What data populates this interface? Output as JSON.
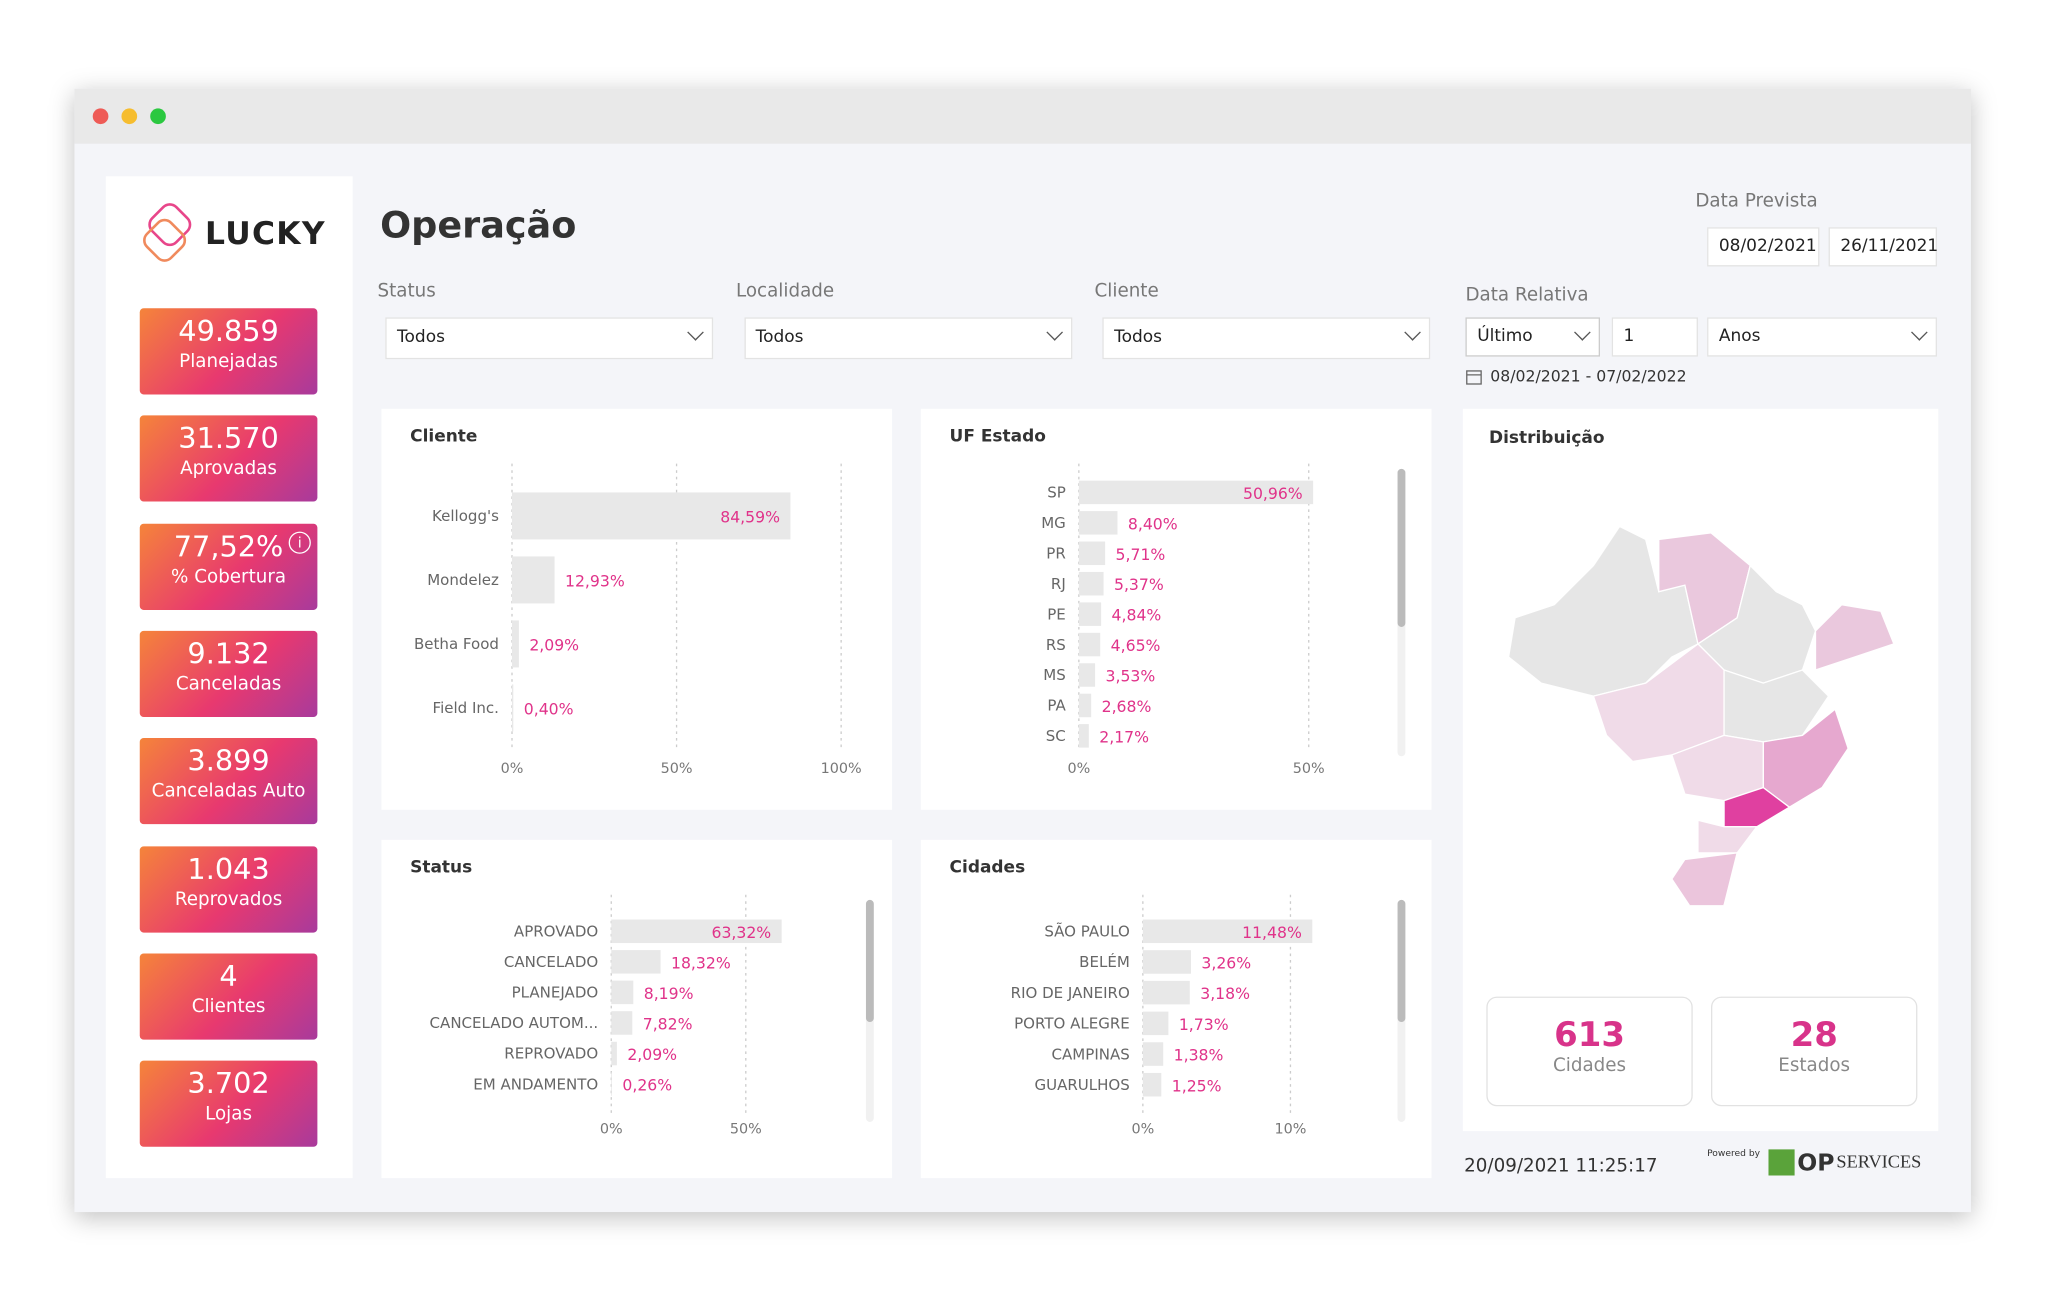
{
  "sidebar": {
    "logo": "LUCKY",
    "kpis": [
      {
        "value": "49.859",
        "label": "Planejadas"
      },
      {
        "value": "31.570",
        "label": "Aprovadas"
      },
      {
        "value": "77,52%",
        "label": "% Cobertura"
      },
      {
        "value": "9.132",
        "label": "Canceladas"
      },
      {
        "value": "3.899",
        "label": "Canceladas Auto"
      },
      {
        "value": "1.043",
        "label": "Reprovados"
      },
      {
        "value": "4",
        "label": "Clientes"
      },
      {
        "value": "3.702",
        "label": "Lojas"
      }
    ]
  },
  "header": {
    "title": "Operação"
  },
  "filters": [
    {
      "label": "Status",
      "value": "Todos"
    },
    {
      "label": "Localidade",
      "value": "Todos"
    },
    {
      "label": "Cliente",
      "value": "Todos"
    }
  ],
  "data_prevista": {
    "label": "Data Prevista",
    "start": "08/02/2021",
    "end": "26/11/2021"
  },
  "data_relativa": {
    "label": "Data Relativa",
    "mode": "Último",
    "count": "1",
    "unit": "Anos",
    "range": "08/02/2021 - 07/02/2022"
  },
  "chart_data": [
    {
      "type": "bar",
      "orientation": "horizontal",
      "title": "Cliente",
      "categories": [
        "Kellogg's",
        "Mondelez",
        "Betha Food",
        "Field Inc."
      ],
      "values": [
        84.59,
        12.93,
        2.09,
        0.4
      ],
      "value_labels": [
        "84,59%",
        "12,93%",
        "2,09%",
        "0,40%"
      ],
      "xlim": [
        0,
        100
      ],
      "xticks": [
        {
          "value": 0,
          "label": "0%"
        },
        {
          "value": 50,
          "label": "50%"
        },
        {
          "value": 100,
          "label": "100%"
        }
      ],
      "color": "#e8e8e8",
      "label_color": "#e0338a",
      "grid": true
    },
    {
      "type": "bar",
      "orientation": "horizontal",
      "title": "UF Estado",
      "categories": [
        "SP",
        "MG",
        "PR",
        "RJ",
        "PE",
        "RS",
        "MS",
        "PA",
        "SC"
      ],
      "values": [
        50.96,
        8.4,
        5.71,
        5.37,
        4.84,
        4.65,
        3.53,
        2.68,
        2.17
      ],
      "value_labels": [
        "50,96%",
        "8,40%",
        "5,71%",
        "5,37%",
        "4,84%",
        "4,65%",
        "3,53%",
        "2,68%",
        "2,17%"
      ],
      "xlim": [
        0,
        65
      ],
      "xticks": [
        {
          "value": 0,
          "label": "0%"
        },
        {
          "value": 50,
          "label": "50%"
        }
      ],
      "color": "#e8e8e8",
      "label_color": "#e0338a",
      "grid": true
    },
    {
      "type": "bar",
      "orientation": "horizontal",
      "title": "Status",
      "categories": [
        "APROVADO",
        "CANCELADO",
        "PLANEJADO",
        "CANCELADO AUTOM...",
        "REPROVADO",
        "EM ANDAMENTO"
      ],
      "values": [
        63.32,
        18.32,
        8.19,
        7.82,
        2.09,
        0.26
      ],
      "value_labels": [
        "63,32%",
        "18,32%",
        "8,19%",
        "7,82%",
        "2,09%",
        "0,26%"
      ],
      "xlim": [
        0,
        90
      ],
      "xticks": [
        {
          "value": 0,
          "label": "0%"
        },
        {
          "value": 50,
          "label": "50%"
        }
      ],
      "color": "#e8e8e8",
      "label_color": "#e0338a",
      "grid": true
    },
    {
      "type": "bar",
      "orientation": "horizontal",
      "title": "Cidades",
      "categories": [
        "SÃO PAULO",
        "BELÉM",
        "RIO DE JANEIRO",
        "PORTO ALEGRE",
        "CAMPINAS",
        "GUARULHOS"
      ],
      "values": [
        11.48,
        3.26,
        3.18,
        1.73,
        1.38,
        1.25
      ],
      "value_labels": [
        "11,48%",
        "3,26%",
        "3,18%",
        "1,73%",
        "1,38%",
        "1,25%"
      ],
      "xlim": [
        0,
        16
      ],
      "xticks": [
        {
          "value": 0,
          "label": "0%"
        },
        {
          "value": 10,
          "label": "10%"
        }
      ],
      "color": "#e8e8e8",
      "label_color": "#e0338a",
      "grid": true
    }
  ],
  "map": {
    "title": "Distribuição",
    "cards": [
      {
        "value": "613",
        "label": "Cidades"
      },
      {
        "value": "28",
        "label": "Estados"
      }
    ]
  },
  "footer": {
    "timestamp": "20/09/2021 11:25:17",
    "powered": "Powered by",
    "brand_op": "OP",
    "brand_services": "SERVICES"
  }
}
